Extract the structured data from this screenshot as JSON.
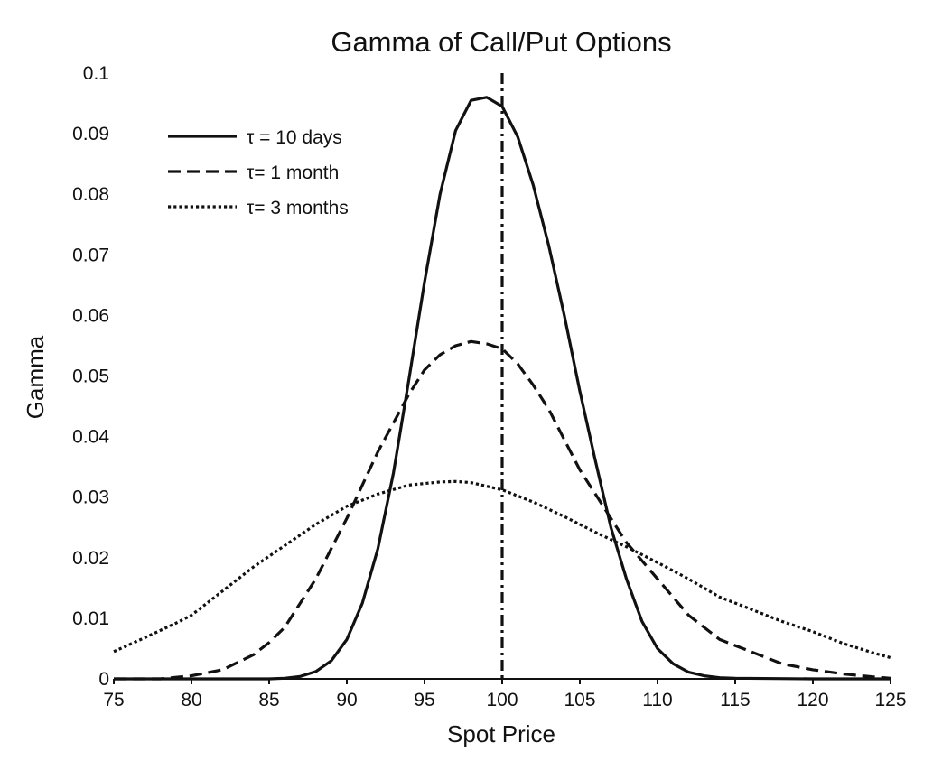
{
  "chart_data": {
    "type": "line",
    "title": "Gamma of Call/Put Options",
    "xlabel": "Spot Price",
    "ylabel": "Gamma",
    "xlim": [
      75,
      125
    ],
    "ylim": [
      0,
      0.1
    ],
    "xticks": [
      75,
      80,
      85,
      90,
      95,
      100,
      105,
      110,
      115,
      120,
      125
    ],
    "yticks": [
      0,
      0.01,
      0.02,
      0.03,
      0.04,
      0.05,
      0.06,
      0.07,
      0.08,
      0.09,
      0.1
    ],
    "grid": false,
    "legend": {
      "position": "top-left"
    },
    "reference_line": {
      "x": 100,
      "style": "dash-dot"
    },
    "series": [
      {
        "name": "τ = 10 days",
        "style": "solid",
        "x": [
          75,
          80,
          85,
          86,
          87,
          88,
          89,
          90,
          91,
          92,
          93,
          94,
          95,
          96,
          97,
          98,
          99,
          100,
          101,
          102,
          103,
          104,
          105,
          106,
          107,
          108,
          109,
          110,
          111,
          112,
          113,
          114,
          115,
          120,
          125
        ],
        "y": [
          0,
          0,
          0,
          0.0001,
          0.0004,
          0.0012,
          0.003,
          0.0065,
          0.0125,
          0.0215,
          0.034,
          0.0495,
          0.0655,
          0.08,
          0.0905,
          0.0955,
          0.096,
          0.0945,
          0.0895,
          0.0815,
          0.0715,
          0.06,
          0.0475,
          0.036,
          0.025,
          0.0165,
          0.0095,
          0.005,
          0.0025,
          0.0011,
          0.0005,
          0.0002,
          0.0001,
          0,
          0
        ]
      },
      {
        "name": "τ= 1 month",
        "style": "dashed",
        "x": [
          75,
          78,
          80,
          82,
          84,
          85,
          86,
          88,
          90,
          92,
          94,
          95,
          96,
          97,
          98,
          99,
          100,
          101,
          102,
          103,
          104,
          105,
          106,
          107,
          108,
          110,
          112,
          114,
          115,
          116,
          118,
          120,
          122,
          124,
          125
        ],
        "y": [
          0,
          0,
          0.0005,
          0.0015,
          0.004,
          0.006,
          0.0085,
          0.0165,
          0.0265,
          0.0375,
          0.047,
          0.051,
          0.0535,
          0.055,
          0.0557,
          0.0553,
          0.0545,
          0.052,
          0.0485,
          0.0445,
          0.0395,
          0.0345,
          0.0305,
          0.0265,
          0.0225,
          0.0165,
          0.0105,
          0.0065,
          0.0055,
          0.0045,
          0.0025,
          0.0015,
          0.0008,
          0.0003,
          0.0001
        ]
      },
      {
        "name": "τ= 3 months",
        "style": "dotted",
        "x": [
          75,
          77,
          79,
          80,
          82,
          84,
          86,
          88,
          90,
          92,
          94,
          96,
          97,
          98,
          100,
          102,
          104,
          106,
          108,
          110,
          112,
          114,
          116,
          118,
          120,
          122,
          124,
          125
        ],
        "y": [
          0.0045,
          0.0068,
          0.0092,
          0.0105,
          0.0145,
          0.0185,
          0.022,
          0.0255,
          0.0285,
          0.0305,
          0.032,
          0.0325,
          0.0326,
          0.0324,
          0.0312,
          0.0292,
          0.0268,
          0.0242,
          0.0218,
          0.0192,
          0.0165,
          0.0135,
          0.0115,
          0.0095,
          0.0078,
          0.0058,
          0.0042,
          0.0035
        ]
      }
    ]
  }
}
